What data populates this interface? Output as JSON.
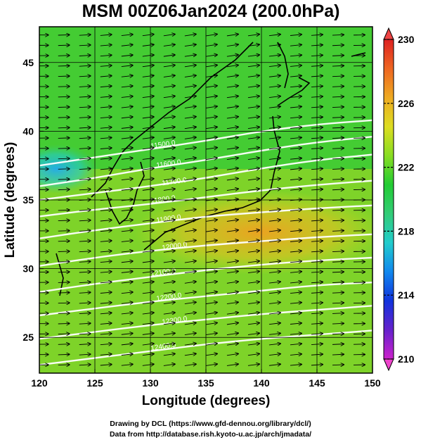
{
  "chart_data": {
    "type": "heatmap",
    "title": "MSM 00Z06Jan2024 (200.0hPa)",
    "xlabel": "Longitude (degrees)",
    "ylabel": "Latitude  (degrees)",
    "xlim": [
      120,
      150
    ],
    "ylim": [
      22.4,
      47.6
    ],
    "xticks": [
      120,
      125,
      130,
      135,
      140,
      145,
      150
    ],
    "yticks": [
      25,
      30,
      35,
      40,
      45
    ],
    "grid": true,
    "colorbar": {
      "min": 210,
      "max": 230,
      "ticks": [
        210,
        214,
        218,
        222,
        226,
        230
      ],
      "colors": [
        "#cc22cc",
        "#6622cc",
        "#1133dd",
        "#1188ee",
        "#22cccc",
        "#33cc77",
        "#22cc33",
        "#88dd22",
        "#dddd22",
        "#eeaa22",
        "#ee6622",
        "#dd2222"
      ]
    },
    "contours": [
      {
        "label": "11500.0",
        "points": [
          [
            120,
            37.5
          ],
          [
            125,
            38.1
          ],
          [
            130,
            38.7
          ],
          [
            135,
            39.3
          ],
          [
            140,
            40.0
          ],
          [
            145,
            40.5
          ],
          [
            150,
            40.8
          ]
        ]
      },
      {
        "label": "11600.0",
        "points": [
          [
            120,
            36.0
          ],
          [
            125,
            36.6
          ],
          [
            130,
            37.3
          ],
          [
            135,
            37.9
          ],
          [
            140,
            38.6
          ],
          [
            145,
            39.2
          ],
          [
            150,
            39.6
          ]
        ]
      },
      {
        "label": "11700.0",
        "points": [
          [
            120,
            35.0
          ],
          [
            125,
            35.5
          ],
          [
            130,
            36.0
          ],
          [
            135,
            36.6
          ],
          [
            140,
            37.3
          ],
          [
            145,
            37.9
          ],
          [
            150,
            38.3
          ]
        ]
      },
      {
        "label": "11800.0",
        "points": [
          [
            120,
            33.8
          ],
          [
            125,
            34.3
          ],
          [
            130,
            34.7
          ],
          [
            135,
            35.2
          ],
          [
            140,
            35.7
          ],
          [
            145,
            36.1
          ],
          [
            150,
            36.4
          ]
        ]
      },
      {
        "label": "11900.0",
        "points": [
          [
            120,
            32.2
          ],
          [
            125,
            32.8
          ],
          [
            130,
            33.3
          ],
          [
            135,
            33.8
          ],
          [
            140,
            34.1
          ],
          [
            145,
            34.4
          ],
          [
            150,
            34.6
          ]
        ]
      },
      {
        "label": "12000.0",
        "points": [
          [
            120,
            30.2
          ],
          [
            125,
            30.8
          ],
          [
            130,
            31.3
          ],
          [
            135,
            31.7
          ],
          [
            140,
            32.0
          ],
          [
            145,
            32.3
          ],
          [
            150,
            32.5
          ]
        ]
      },
      {
        "label": "12100.0",
        "points": [
          [
            120,
            28.3
          ],
          [
            125,
            28.9
          ],
          [
            130,
            29.4
          ],
          [
            135,
            29.9
          ],
          [
            140,
            30.3
          ],
          [
            145,
            30.6
          ],
          [
            150,
            30.8
          ]
        ]
      },
      {
        "label": "12200.0",
        "points": [
          [
            120,
            26.6
          ],
          [
            125,
            27.1
          ],
          [
            130,
            27.6
          ],
          [
            135,
            28.0
          ],
          [
            140,
            28.4
          ],
          [
            145,
            28.8
          ],
          [
            150,
            29.0
          ]
        ]
      },
      {
        "label": "12300.0",
        "points": [
          [
            120,
            24.9
          ],
          [
            125,
            25.4
          ],
          [
            130,
            25.9
          ],
          [
            135,
            26.3
          ],
          [
            140,
            26.7
          ],
          [
            145,
            27.0
          ],
          [
            150,
            27.3
          ]
        ]
      },
      {
        "label": "12400.0",
        "points": [
          [
            120,
            23.0
          ],
          [
            125,
            23.5
          ],
          [
            130,
            24.0
          ],
          [
            135,
            24.5
          ],
          [
            140,
            24.9
          ],
          [
            145,
            25.2
          ],
          [
            150,
            25.5
          ]
        ]
      }
    ]
  },
  "credits": {
    "line1": "Drawing by DCL (https://www.gfd-dennou.org/library/dcl/)",
    "line2": "Data from http://database.rish.kyoto-u.ac.jp/arch/jmadata/"
  }
}
